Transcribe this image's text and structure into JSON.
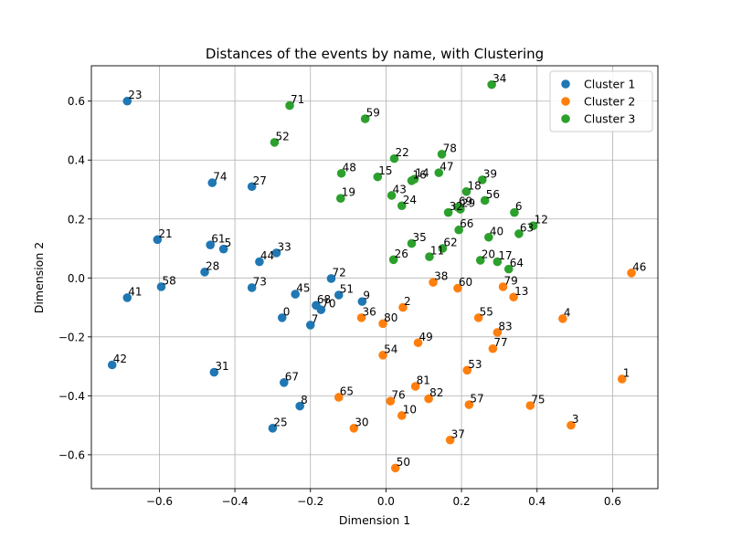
{
  "chart_data": {
    "type": "scatter",
    "title": "Distances of the events by name, with Clustering",
    "xlabel": "Dimension 1",
    "ylabel": "Dimension 2",
    "xlim": [
      -0.78,
      0.72
    ],
    "ylim": [
      -0.715,
      0.72
    ],
    "xticks": [
      -0.6,
      -0.4,
      -0.2,
      0.0,
      0.2,
      0.4,
      0.6
    ],
    "xtick_labels": [
      "−0.6",
      "−0.4",
      "−0.2",
      "0.0",
      "0.2",
      "0.4",
      "0.6"
    ],
    "yticks": [
      -0.6,
      -0.4,
      -0.2,
      0.0,
      0.2,
      0.4,
      0.6
    ],
    "ytick_labels": [
      "−0.6",
      "−0.4",
      "−0.2",
      "0.0",
      "0.2",
      "0.4",
      "0.6"
    ],
    "grid": true,
    "legend_position": "top-right",
    "series": [
      {
        "name": "Cluster 1",
        "color": "#1f77b4",
        "points": [
          {
            "label": "0",
            "x": -0.275,
            "y": -0.135
          },
          {
            "label": "5",
            "x": -0.43,
            "y": 0.098
          },
          {
            "label": "7",
            "x": -0.2,
            "y": -0.16
          },
          {
            "label": "8",
            "x": -0.228,
            "y": -0.435
          },
          {
            "label": "9",
            "x": -0.063,
            "y": -0.08
          },
          {
            "label": "21",
            "x": -0.605,
            "y": 0.13
          },
          {
            "label": "23",
            "x": -0.685,
            "y": 0.6
          },
          {
            "label": "25",
            "x": -0.3,
            "y": -0.51
          },
          {
            "label": "27",
            "x": -0.355,
            "y": 0.31
          },
          {
            "label": "28",
            "x": -0.48,
            "y": 0.02
          },
          {
            "label": "31",
            "x": -0.455,
            "y": -0.32
          },
          {
            "label": "33",
            "x": -0.29,
            "y": 0.085
          },
          {
            "label": "41",
            "x": -0.685,
            "y": -0.067
          },
          {
            "label": "42",
            "x": -0.725,
            "y": -0.295
          },
          {
            "label": "44",
            "x": -0.335,
            "y": 0.055
          },
          {
            "label": "45",
            "x": -0.24,
            "y": -0.055
          },
          {
            "label": "51",
            "x": -0.125,
            "y": -0.058
          },
          {
            "label": "58",
            "x": -0.595,
            "y": -0.03
          },
          {
            "label": "61",
            "x": -0.465,
            "y": 0.112
          },
          {
            "label": "67",
            "x": -0.27,
            "y": -0.355
          },
          {
            "label": "68",
            "x": -0.185,
            "y": -0.093
          },
          {
            "label": "70",
            "x": -0.172,
            "y": -0.108
          },
          {
            "label": "72",
            "x": -0.145,
            "y": -0.002
          },
          {
            "label": "73",
            "x": -0.355,
            "y": -0.033
          },
          {
            "label": "74",
            "x": -0.46,
            "y": 0.323
          }
        ]
      },
      {
        "name": "Cluster 2",
        "color": "#ff7f0e",
        "points": [
          {
            "label": "1",
            "x": 0.625,
            "y": -0.343
          },
          {
            "label": "2",
            "x": 0.045,
            "y": -0.1
          },
          {
            "label": "3",
            "x": 0.49,
            "y": -0.5
          },
          {
            "label": "4",
            "x": 0.468,
            "y": -0.138
          },
          {
            "label": "10",
            "x": 0.042,
            "y": -0.467
          },
          {
            "label": "13",
            "x": 0.338,
            "y": -0.065
          },
          {
            "label": "30",
            "x": -0.085,
            "y": -0.51
          },
          {
            "label": "36",
            "x": -0.065,
            "y": -0.135
          },
          {
            "label": "37",
            "x": 0.17,
            "y": -0.55
          },
          {
            "label": "38",
            "x": 0.125,
            "y": -0.015
          },
          {
            "label": "46",
            "x": 0.65,
            "y": 0.017
          },
          {
            "label": "49",
            "x": 0.085,
            "y": -0.22
          },
          {
            "label": "50",
            "x": 0.025,
            "y": -0.645
          },
          {
            "label": "53",
            "x": 0.215,
            "y": -0.313
          },
          {
            "label": "54",
            "x": -0.008,
            "y": -0.262
          },
          {
            "label": "55",
            "x": 0.245,
            "y": -0.135
          },
          {
            "label": "57",
            "x": 0.22,
            "y": -0.43
          },
          {
            "label": "60",
            "x": 0.19,
            "y": -0.035
          },
          {
            "label": "65",
            "x": -0.125,
            "y": -0.405
          },
          {
            "label": "75",
            "x": 0.382,
            "y": -0.433
          },
          {
            "label": "76",
            "x": 0.012,
            "y": -0.418
          },
          {
            "label": "77",
            "x": 0.283,
            "y": -0.24
          },
          {
            "label": "79",
            "x": 0.31,
            "y": -0.03
          },
          {
            "label": "80",
            "x": -0.008,
            "y": -0.155
          },
          {
            "label": "81",
            "x": 0.078,
            "y": -0.368
          },
          {
            "label": "82",
            "x": 0.113,
            "y": -0.41
          },
          {
            "label": "83",
            "x": 0.295,
            "y": -0.185
          }
        ]
      },
      {
        "name": "Cluster 3",
        "color": "#2ca02c",
        "points": [
          {
            "label": "6",
            "x": 0.34,
            "y": 0.222
          },
          {
            "label": "11",
            "x": 0.115,
            "y": 0.072
          },
          {
            "label": "12",
            "x": 0.39,
            "y": 0.177
          },
          {
            "label": "14",
            "x": 0.075,
            "y": 0.335
          },
          {
            "label": "15",
            "x": -0.022,
            "y": 0.343
          },
          {
            "label": "16",
            "x": 0.068,
            "y": 0.33
          },
          {
            "label": "17",
            "x": 0.295,
            "y": 0.055
          },
          {
            "label": "18",
            "x": 0.213,
            "y": 0.293
          },
          {
            "label": "19",
            "x": -0.12,
            "y": 0.27
          },
          {
            "label": "20",
            "x": 0.25,
            "y": 0.06
          },
          {
            "label": "22",
            "x": 0.022,
            "y": 0.405
          },
          {
            "label": "24",
            "x": 0.042,
            "y": 0.245
          },
          {
            "label": "26",
            "x": 0.02,
            "y": 0.062
          },
          {
            "label": "29",
            "x": 0.197,
            "y": 0.233
          },
          {
            "label": "32",
            "x": 0.165,
            "y": 0.222
          },
          {
            "label": "34",
            "x": 0.28,
            "y": 0.656
          },
          {
            "label": "35",
            "x": 0.068,
            "y": 0.117
          },
          {
            "label": "39",
            "x": 0.255,
            "y": 0.333
          },
          {
            "label": "40",
            "x": 0.272,
            "y": 0.138
          },
          {
            "label": "43",
            "x": 0.015,
            "y": 0.28
          },
          {
            "label": "47",
            "x": 0.14,
            "y": 0.357
          },
          {
            "label": "48",
            "x": -0.118,
            "y": 0.355
          },
          {
            "label": "52",
            "x": -0.295,
            "y": 0.46
          },
          {
            "label": "56",
            "x": 0.262,
            "y": 0.263
          },
          {
            "label": "59",
            "x": -0.055,
            "y": 0.54
          },
          {
            "label": "62",
            "x": 0.15,
            "y": 0.1
          },
          {
            "label": "63",
            "x": 0.352,
            "y": 0.15
          },
          {
            "label": "64",
            "x": 0.325,
            "y": 0.03
          },
          {
            "label": "66",
            "x": 0.193,
            "y": 0.163
          },
          {
            "label": "69",
            "x": 0.19,
            "y": 0.24
          },
          {
            "label": "71",
            "x": -0.255,
            "y": 0.585
          },
          {
            "label": "78",
            "x": 0.148,
            "y": 0.42
          }
        ]
      }
    ]
  }
}
